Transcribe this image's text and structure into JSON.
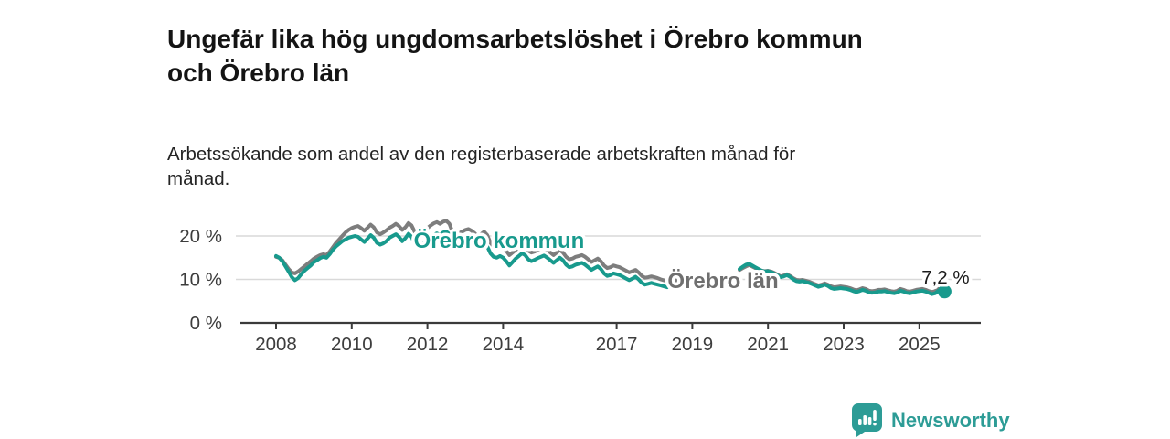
{
  "header": {
    "title_lines": [
      "Ungefär lika hög ungdomsarbetslöshet i Örebro kommun",
      "och Örebro län"
    ],
    "subtitle_lines": [
      "Arbetssökande som andel av den registerbaserade arbetskraften månad för",
      "månad."
    ]
  },
  "footer": {
    "brand": "Newsworthy",
    "logo_icon": "newsworthy-speech-bubble-bars-icon",
    "brand_color": "#2d9c96"
  },
  "colors": {
    "kommun_line": "#189a8d",
    "lan_line": "#7d7d7d",
    "lan_label": "#6f6f6f",
    "axis": "#3a3a3a",
    "tick_text": "#3d3d3d",
    "gridline": "#d9d9d9",
    "annotation_text": "#1a1a1a",
    "background": "#ffffff"
  },
  "chart_data": {
    "type": "line",
    "title": "Ungefär lika hög ungdomsarbetslöshet i Örebro kommun och Örebro län",
    "subtitle": "Arbetssökande som andel av den registerbaserade arbetskraften månad för månad.",
    "unit": "%",
    "xlabel": "",
    "ylabel": "",
    "grid": "horizontal",
    "legend_position": "inline-labels",
    "x_tick_years": [
      2008,
      2010,
      2012,
      2014,
      2017,
      2019,
      2021,
      2023,
      2025
    ],
    "y_ticks": [
      {
        "label": "0 %",
        "value": 0
      },
      {
        "label": "10 %",
        "value": 10
      },
      {
        "label": "20 %",
        "value": 20
      }
    ],
    "ylim": [
      0,
      25
    ],
    "xlim_years": [
      2007.05,
      2026.6
    ],
    "data_gap": {
      "from": "2018-11",
      "to": "2020-03"
    },
    "annotation": {
      "text": "7,2 %",
      "series": "Örebro kommun",
      "at": "last-point"
    },
    "series": [
      {
        "name": "Örebro län",
        "color": "#7d7d7d",
        "end_dot": false,
        "segments": [
          {
            "start": "2008-01",
            "values": [
              15.2,
              15.0,
              14.4,
              13.4,
              12.4,
              11.6,
              11.4,
              11.8,
              12.4,
              13.0,
              13.6,
              14.2,
              14.8,
              15.2,
              15.6,
              15.8,
              15.6,
              16.4,
              17.4,
              18.4,
              19.2,
              20.0,
              20.8,
              21.4,
              21.8,
              22.1,
              22.3,
              21.8,
              21.2,
              21.9,
              22.6,
              22.0,
              20.8,
              20.4,
              20.8,
              21.3,
              21.9,
              22.3,
              22.8,
              22.3,
              21.4,
              22.0,
              23.0,
              22.4,
              20.9,
              20.2,
              20.6,
              21.2,
              21.8,
              22.4,
              22.9,
              23.2,
              22.8,
              23.3,
              23.5,
              22.8,
              20.8,
              20.2,
              20.6,
              21.0,
              21.4,
              21.6,
              21.2,
              20.6,
              19.8,
              20.4,
              21.0,
              20.2,
              18.4,
              17.6,
              17.4,
              17.8,
              17.4,
              16.6,
              15.6,
              16.2,
              16.8,
              17.4,
              18.0,
              17.6,
              16.6,
              16.2,
              16.4,
              16.8,
              17.0,
              17.2,
              16.8,
              16.2,
              15.6,
              16.2,
              16.8,
              16.2,
              15.2,
              14.6,
              14.8,
              15.2,
              15.4,
              15.6,
              15.2,
              14.6,
              14.0,
              14.4,
              14.8,
              14.2,
              13.2,
              12.6,
              12.8,
              13.2,
              13.0,
              12.8,
              12.4,
              12.0,
              11.6,
              11.9,
              12.2,
              11.6,
              10.8,
              10.4,
              10.5,
              10.7,
              10.5,
              10.3,
              10.0,
              9.8,
              9.6,
              9.9,
              10.2,
              9.8,
              9.2,
              9.0
            ]
          },
          {
            "start": "2020-04",
            "values": [
              12.2,
              12.6,
              13.0,
              13.3,
              13.0,
              12.6,
              12.3,
              12.0,
              11.9,
              12.0,
              11.8,
              11.5,
              11.1,
              10.7,
              10.9,
              11.2,
              10.8,
              10.3,
              9.9,
              9.8,
              9.9,
              9.7,
              9.5,
              9.2,
              8.9,
              8.6,
              8.8,
              9.1,
              8.8,
              8.4,
              8.2,
              8.3,
              8.4,
              8.3,
              8.2,
              8.0,
              7.7,
              7.5,
              7.7,
              8.0,
              7.8,
              7.4,
              7.3,
              7.4,
              7.6,
              7.6,
              7.7,
              7.5,
              7.3,
              7.2,
              7.4,
              7.8,
              7.6,
              7.3,
              7.2,
              7.4,
              7.6,
              7.7,
              7.8,
              7.6,
              7.3,
              7.1,
              7.3,
              7.8,
              7.6,
              7.4
            ]
          }
        ]
      },
      {
        "name": "Örebro kommun",
        "color": "#189a8d",
        "end_dot": true,
        "segments": [
          {
            "start": "2008-01",
            "values": [
              15.4,
              15.0,
              14.2,
              13.0,
              11.8,
              10.5,
              9.8,
              10.3,
              11.2,
              12.0,
              12.6,
              13.2,
              14.0,
              14.4,
              14.9,
              15.2,
              15.0,
              15.8,
              16.8,
              17.6,
              18.2,
              18.8,
              19.2,
              19.6,
              19.8,
              20.0,
              19.8,
              19.2,
              18.6,
              19.4,
              20.2,
              19.6,
              18.4,
              18.0,
              18.3,
              18.8,
              19.6,
              20.0,
              20.4,
              19.8,
              18.8,
              19.5,
              20.5,
              19.8,
              18.2,
              17.4,
              17.8,
              18.4,
              19.0,
              19.6,
              20.2,
              20.6,
              20.2,
              20.8,
              21.0,
              20.4,
              18.2,
              17.6,
              18.0,
              18.6,
              18.8,
              19.0,
              18.6,
              18.0,
              17.2,
              17.8,
              18.4,
              17.6,
              16.0,
              15.2,
              15.0,
              15.4,
              15.0,
              14.2,
              13.2,
              14.0,
              14.8,
              15.4,
              16.0,
              15.6,
              14.6,
              14.2,
              14.5,
              14.9,
              15.2,
              15.5,
              15.0,
              14.4,
              13.8,
              14.4,
              15.0,
              14.4,
              13.4,
              12.8,
              13.0,
              13.4,
              13.6,
              13.8,
              13.4,
              12.8,
              12.2,
              12.6,
              13.0,
              12.4,
              11.4,
              10.8,
              11.0,
              11.4,
              11.2,
              11.0,
              10.6,
              10.2,
              9.8,
              10.2,
              10.6,
              10.0,
              9.2,
              8.8,
              9.0,
              9.2,
              9.0,
              8.8,
              8.6,
              8.4,
              8.2,
              8.6,
              9.0,
              8.6,
              8.0,
              8.2
            ]
          },
          {
            "start": "2020-04",
            "values": [
              12.4,
              12.9,
              13.4,
              13.6,
              13.2,
              12.8,
              12.4,
              12.0,
              11.8,
              11.9,
              11.7,
              11.3,
              10.9,
              10.5,
              10.7,
              11.0,
              10.6,
              10.0,
              9.6,
              9.5,
              9.6,
              9.4,
              9.2,
              8.9,
              8.6,
              8.3,
              8.5,
              8.8,
              8.5,
              8.0,
              7.8,
              7.9,
              8.0,
              7.9,
              7.8,
              7.6,
              7.3,
              7.1,
              7.3,
              7.6,
              7.4,
              7.0,
              6.9,
              7.0,
              7.2,
              7.2,
              7.3,
              7.1,
              6.9,
              6.8,
              7.0,
              7.4,
              7.2,
              6.9,
              6.8,
              7.0,
              7.2,
              7.3,
              7.4,
              7.2,
              6.9,
              6.6,
              6.8,
              7.4,
              7.3,
              7.2
            ]
          }
        ]
      }
    ]
  }
}
